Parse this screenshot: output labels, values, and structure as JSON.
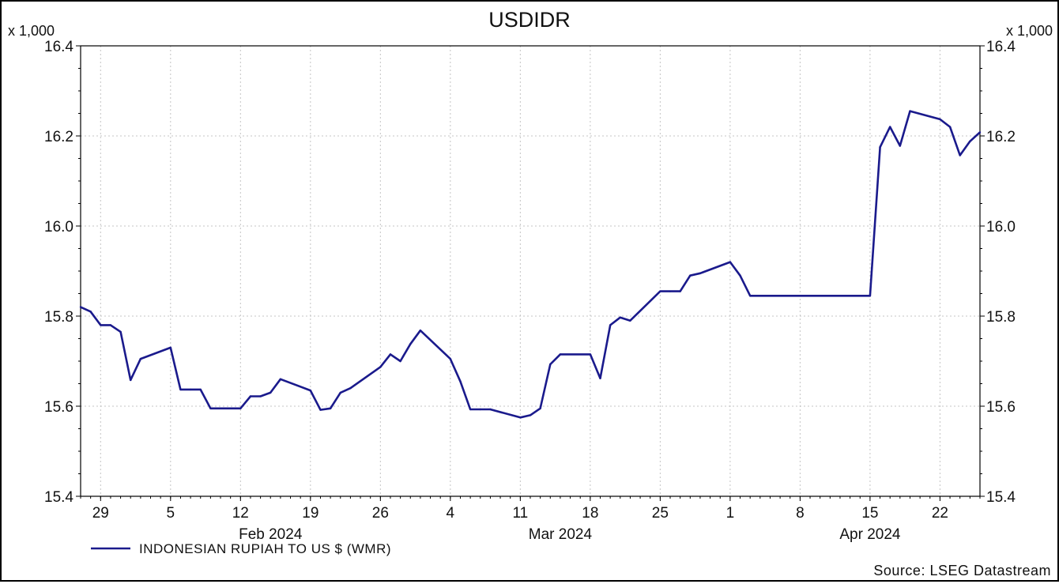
{
  "chart_data": {
    "type": "line",
    "title": "USDIDR",
    "unit_left": "x 1,000",
    "unit_right": "x 1,000",
    "ylim": [
      15.4,
      16.4
    ],
    "yticks": [
      "15.4",
      "15.6",
      "15.8",
      "16.0",
      "16.2",
      "16.4"
    ],
    "xlim": [
      "2024-01-27",
      "2024-04-26"
    ],
    "xticks": [
      {
        "date": "2024-01-29",
        "label": "29"
      },
      {
        "date": "2024-02-05",
        "label": "5"
      },
      {
        "date": "2024-02-12",
        "label": "12"
      },
      {
        "date": "2024-02-19",
        "label": "19"
      },
      {
        "date": "2024-02-26",
        "label": "26"
      },
      {
        "date": "2024-03-04",
        "label": "4"
      },
      {
        "date": "2024-03-11",
        "label": "11"
      },
      {
        "date": "2024-03-18",
        "label": "18"
      },
      {
        "date": "2024-03-25",
        "label": "25"
      },
      {
        "date": "2024-04-01",
        "label": "1"
      },
      {
        "date": "2024-04-08",
        "label": "8"
      },
      {
        "date": "2024-04-15",
        "label": "15"
      },
      {
        "date": "2024-04-22",
        "label": "22"
      }
    ],
    "month_labels": [
      {
        "date": "2024-02-15",
        "label": "Feb 2024"
      },
      {
        "date": "2024-03-15",
        "label": "Mar 2024"
      },
      {
        "date": "2024-04-15",
        "label": "Apr 2024"
      }
    ],
    "grid": true,
    "legend_position": "bottom-left",
    "series": [
      {
        "name": "INDONESIAN RUPIAH TO US $ (WMR)",
        "color": "#1a1a8c",
        "points": [
          [
            "2024-01-27",
            15.82
          ],
          [
            "2024-01-28",
            15.81
          ],
          [
            "2024-01-29",
            15.78
          ],
          [
            "2024-01-30",
            15.78
          ],
          [
            "2024-01-31",
            15.765
          ],
          [
            "2024-02-01",
            15.658
          ],
          [
            "2024-02-02",
            15.705
          ],
          [
            "2024-02-05",
            15.73
          ],
          [
            "2024-02-06",
            15.637
          ],
          [
            "2024-02-07",
            15.637
          ],
          [
            "2024-02-08",
            15.637
          ],
          [
            "2024-02-09",
            15.595
          ],
          [
            "2024-02-12",
            15.595
          ],
          [
            "2024-02-13",
            15.622
          ],
          [
            "2024-02-14",
            15.622
          ],
          [
            "2024-02-15",
            15.63
          ],
          [
            "2024-02-16",
            15.66
          ],
          [
            "2024-02-19",
            15.635
          ],
          [
            "2024-02-20",
            15.592
          ],
          [
            "2024-02-21",
            15.595
          ],
          [
            "2024-02-22",
            15.63
          ],
          [
            "2024-02-23",
            15.64
          ],
          [
            "2024-02-26",
            15.687
          ],
          [
            "2024-02-27",
            15.715
          ],
          [
            "2024-02-28",
            15.7
          ],
          [
            "2024-02-29",
            15.738
          ],
          [
            "2024-03-01",
            15.768
          ],
          [
            "2024-03-04",
            15.705
          ],
          [
            "2024-03-05",
            15.655
          ],
          [
            "2024-03-06",
            15.593
          ],
          [
            "2024-03-07",
            15.593
          ],
          [
            "2024-03-08",
            15.593
          ],
          [
            "2024-03-11",
            15.575
          ],
          [
            "2024-03-12",
            15.58
          ],
          [
            "2024-03-13",
            15.595
          ],
          [
            "2024-03-14",
            15.693
          ],
          [
            "2024-03-15",
            15.715
          ],
          [
            "2024-03-18",
            15.715
          ],
          [
            "2024-03-19",
            15.662
          ],
          [
            "2024-03-20",
            15.78
          ],
          [
            "2024-03-21",
            15.797
          ],
          [
            "2024-03-22",
            15.79
          ],
          [
            "2024-03-25",
            15.855
          ],
          [
            "2024-03-26",
            15.855
          ],
          [
            "2024-03-27",
            15.855
          ],
          [
            "2024-03-28",
            15.89
          ],
          [
            "2024-03-29",
            15.895
          ],
          [
            "2024-04-01",
            15.92
          ],
          [
            "2024-04-02",
            15.89
          ],
          [
            "2024-04-03",
            15.845
          ],
          [
            "2024-04-15",
            15.845
          ],
          [
            "2024-04-16",
            16.175
          ],
          [
            "2024-04-17",
            16.22
          ],
          [
            "2024-04-18",
            16.178
          ],
          [
            "2024-04-19",
            16.255
          ],
          [
            "2024-04-22",
            16.237
          ],
          [
            "2024-04-23",
            16.22
          ],
          [
            "2024-04-24",
            16.157
          ],
          [
            "2024-04-25",
            16.188
          ],
          [
            "2024-04-26",
            16.208
          ]
        ]
      }
    ],
    "source": "Source: LSEG Datastream"
  }
}
